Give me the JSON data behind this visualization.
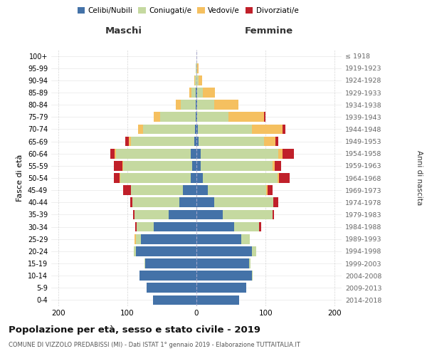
{
  "age_groups": [
    "0-4",
    "5-9",
    "10-14",
    "15-19",
    "20-24",
    "25-29",
    "30-34",
    "35-39",
    "40-44",
    "45-49",
    "50-54",
    "55-59",
    "60-64",
    "65-69",
    "70-74",
    "75-79",
    "80-84",
    "85-89",
    "90-94",
    "95-99",
    "100+"
  ],
  "birth_years": [
    "2014-2018",
    "2009-2013",
    "2004-2008",
    "1999-2003",
    "1994-1998",
    "1989-1993",
    "1984-1988",
    "1979-1983",
    "1974-1978",
    "1969-1973",
    "1964-1968",
    "1959-1963",
    "1954-1958",
    "1949-1953",
    "1944-1948",
    "1939-1943",
    "1934-1938",
    "1929-1933",
    "1924-1928",
    "1919-1923",
    "≤ 1918"
  ],
  "male_celibi": [
    63,
    72,
    82,
    74,
    88,
    80,
    62,
    40,
    25,
    20,
    8,
    6,
    8,
    3,
    2,
    1,
    1,
    1,
    0,
    0,
    0
  ],
  "male_coniugati": [
    0,
    0,
    0,
    1,
    3,
    8,
    24,
    50,
    68,
    75,
    102,
    100,
    108,
    92,
    75,
    52,
    22,
    6,
    2,
    1,
    0
  ],
  "male_vedovi": [
    0,
    0,
    0,
    0,
    0,
    2,
    0,
    0,
    0,
    0,
    1,
    1,
    2,
    3,
    7,
    9,
    7,
    3,
    1,
    0,
    0
  ],
  "male_divorziati": [
    0,
    0,
    0,
    0,
    0,
    0,
    3,
    2,
    3,
    11,
    8,
    12,
    7,
    5,
    0,
    0,
    0,
    0,
    0,
    0,
    0
  ],
  "fem_nubili": [
    62,
    72,
    80,
    76,
    80,
    65,
    55,
    38,
    26,
    16,
    9,
    6,
    6,
    3,
    2,
    1,
    1,
    1,
    0,
    0,
    0
  ],
  "fem_coniugate": [
    0,
    0,
    1,
    2,
    6,
    12,
    36,
    72,
    85,
    85,
    108,
    104,
    112,
    95,
    78,
    45,
    25,
    8,
    3,
    1,
    0
  ],
  "fem_vedove": [
    0,
    0,
    0,
    0,
    0,
    0,
    0,
    0,
    0,
    2,
    2,
    3,
    7,
    16,
    45,
    52,
    35,
    18,
    5,
    2,
    0
  ],
  "fem_divorziate": [
    0,
    0,
    0,
    0,
    0,
    0,
    3,
    2,
    7,
    7,
    16,
    9,
    16,
    4,
    4,
    2,
    0,
    0,
    0,
    0,
    0
  ],
  "color_celibi": "#4472a8",
  "color_coniugati": "#c5d9a0",
  "color_vedovi": "#f5c060",
  "color_divorziati": "#c0202a",
  "title": "Popolazione per età, sesso e stato civile - 2019",
  "subtitle": "COMUNE DI VIZZOLO PREDABISSI (MI) - Dati ISTAT 1° gennaio 2019 - Elaborazione TUTTAITALIA.IT",
  "label_maschi": "Maschi",
  "label_femmine": "Femmine",
  "label_fasce": "Fasce di età",
  "label_anni": "Anni di nascita",
  "legend_labels": [
    "Celibi/Nubili",
    "Coniugati/e",
    "Vedovi/e",
    "Divorziati/e"
  ],
  "xlim": 210,
  "bg_color": "#ffffff",
  "grid_color": "#cccccc"
}
